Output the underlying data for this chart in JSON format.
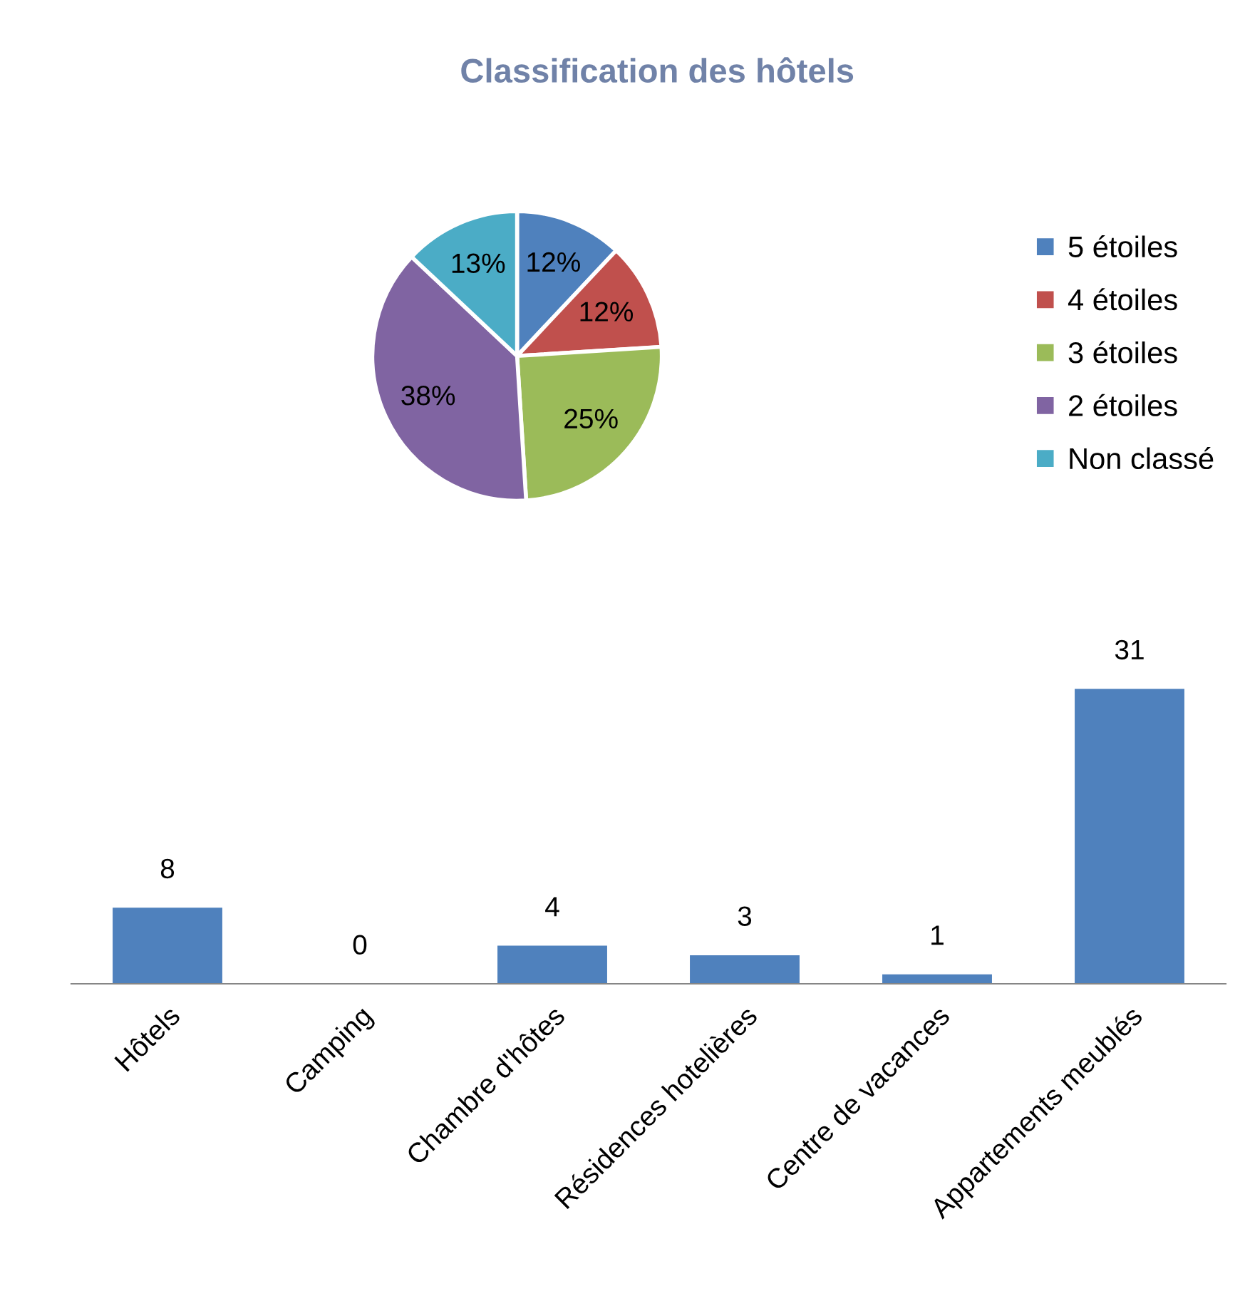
{
  "chart_data": [
    {
      "type": "pie",
      "title": "Classification des hôtels",
      "categories": [
        "5 étoiles",
        "4 étoiles",
        "3 étoiles",
        "2 étoiles",
        "Non classé"
      ],
      "values": [
        12,
        12,
        25,
        38,
        13
      ],
      "colors": [
        "#4f81bd",
        "#c0504d",
        "#9bbb59",
        "#8064a2",
        "#4bacc6"
      ],
      "value_labels": [
        "12%",
        "12%",
        "25%",
        "38%",
        "13%"
      ],
      "legend": "right"
    },
    {
      "type": "bar",
      "categories": [
        "Hôtels",
        "Camping",
        "Chambre d'hôtes",
        "Résidences hotelières",
        "Centre de vacances",
        "Appartements meublés"
      ],
      "values": [
        8,
        0,
        4,
        3,
        1,
        31
      ],
      "color": "#4f81bd",
      "data_labels": true,
      "grid": false
    }
  ]
}
